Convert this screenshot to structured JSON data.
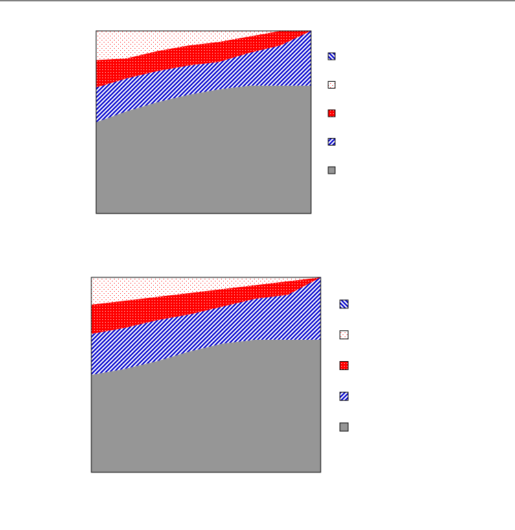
{
  "chart_data": [
    {
      "type": "stacked-area",
      "categories": [
        null,
        null,
        null,
        null,
        null,
        null,
        null,
        null
      ],
      "ylim": [
        0,
        100
      ],
      "series": [
        {
          "color": "#969696",
          "pattern": "solid",
          "values": [
            50,
            56,
            61,
            65,
            68,
            70,
            70,
            70
          ]
        },
        {
          "color": "#0000cc",
          "pattern": "hatch-forward",
          "values": [
            19,
            18,
            17,
            16,
            15,
            18,
            22,
            30
          ]
        },
        {
          "color": "#ff0000",
          "pattern": "dots-dense",
          "values": [
            15,
            11,
            11,
            11,
            11,
            9,
            8,
            0
          ]
        },
        {
          "color": "#ff0000",
          "pattern": "dots-sparse",
          "values": [
            16,
            15,
            11,
            8,
            6,
            3,
            0,
            0
          ]
        },
        {
          "color": "#0000cc",
          "pattern": "hatch-backward",
          "values": [
            0,
            0,
            0,
            0,
            0,
            0,
            0,
            0
          ]
        }
      ]
    },
    {
      "type": "stacked-area",
      "categories": [
        null,
        null,
        null,
        null,
        null,
        null,
        null,
        null
      ],
      "ylim": [
        0,
        100
      ],
      "series": [
        {
          "color": "#969696",
          "pattern": "solid",
          "values": [
            50,
            53,
            57,
            62,
            66,
            68,
            68,
            68
          ]
        },
        {
          "color": "#0000cc",
          "pattern": "hatch-forward",
          "values": [
            21,
            21,
            21,
            19,
            19,
            21,
            23,
            32
          ]
        },
        {
          "color": "#ff0000",
          "pattern": "dots-dense",
          "values": [
            15,
            14,
            12,
            11,
            9,
            7,
            7,
            0
          ]
        },
        {
          "color": "#ff0000",
          "pattern": "dots-sparse",
          "values": [
            14,
            12,
            10,
            8,
            6,
            4,
            2,
            0
          ]
        },
        {
          "color": "#0000cc",
          "pattern": "hatch-backward",
          "values": [
            0,
            0,
            0,
            0,
            0,
            0,
            0,
            0
          ]
        }
      ]
    }
  ]
}
